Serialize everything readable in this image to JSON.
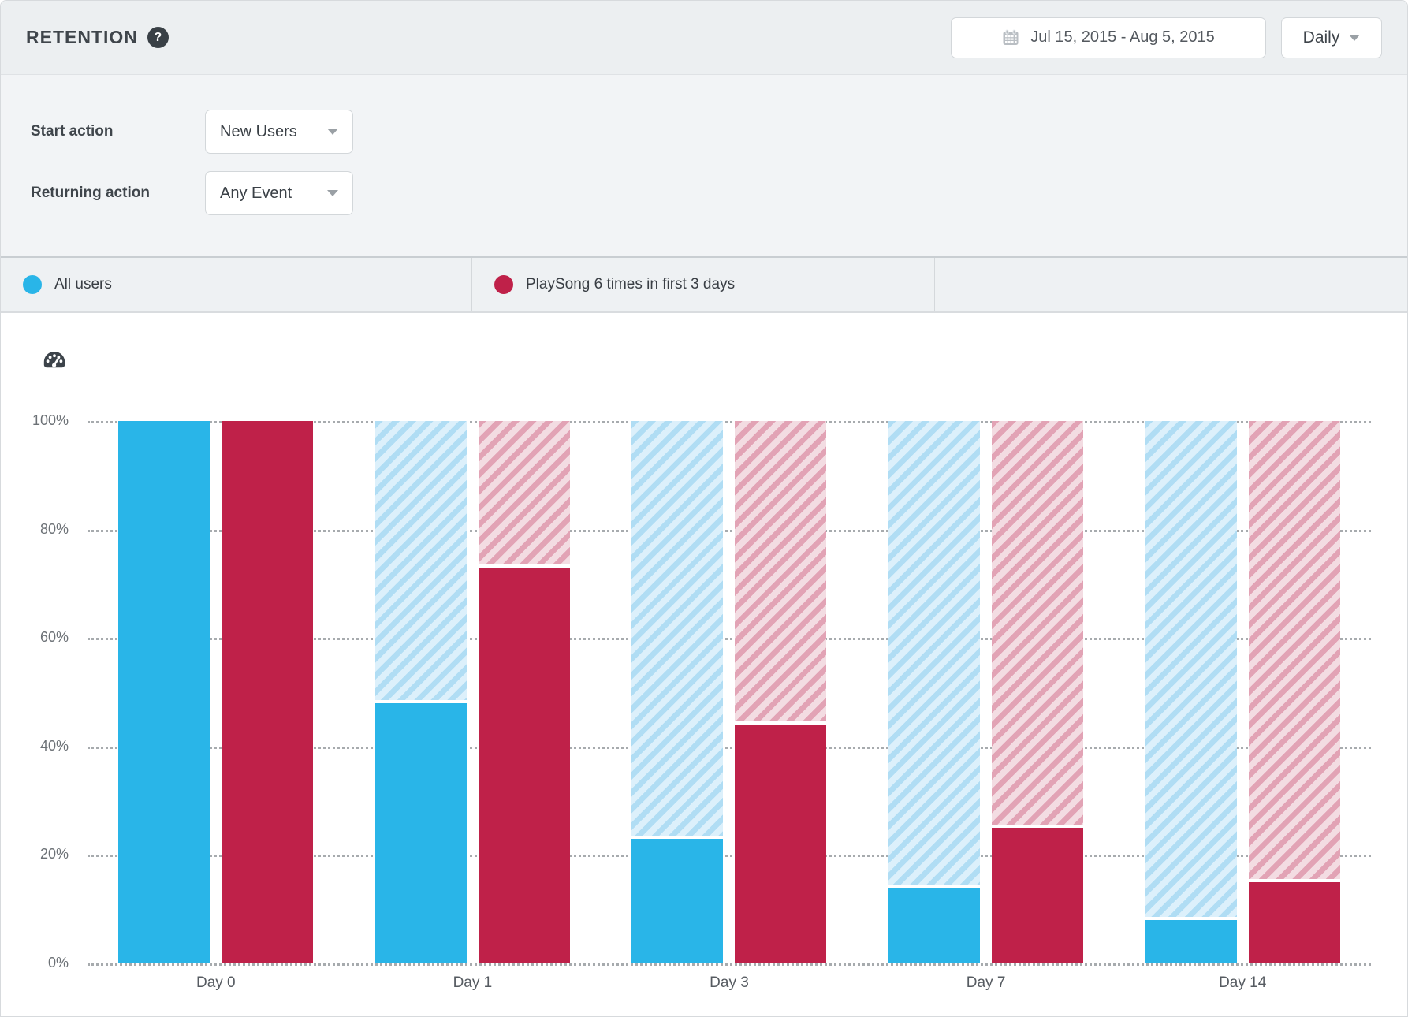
{
  "header": {
    "title": "RETENTION",
    "help_icon": "question-mark",
    "date_range": "Jul 15, 2015  -  Aug 5, 2015",
    "granularity": "Daily"
  },
  "filters": {
    "start_action_label": "Start action",
    "start_action_value": "New Users",
    "returning_action_label": "Returning action",
    "returning_action_value": "Any Event"
  },
  "legend": [
    {
      "label": "All users",
      "color": "#29b5e8"
    },
    {
      "label": "PlaySong 6 times in first 3 days",
      "color": "#bf2149"
    }
  ],
  "chart_data": {
    "type": "bar",
    "title": "",
    "xlabel": "",
    "ylabel": "",
    "categories": [
      "Day 0",
      "Day 1",
      "Day 3",
      "Day 7",
      "Day 14"
    ],
    "series": [
      {
        "name": "All users",
        "values": [
          100,
          48,
          23,
          14,
          8
        ],
        "color": "#29b5e8",
        "hatch_bg": "#dcf0fb",
        "hatch_stripe": "#b0ddf4"
      },
      {
        "name": "PlaySong 6 times in first 3 days",
        "values": [
          100,
          73,
          44,
          25,
          15
        ],
        "color": "#bf2149",
        "hatch_bg": "#f3dce2",
        "hatch_stripe": "#e2a3b5"
      }
    ],
    "y_ticks": [
      "100%",
      "80%",
      "60%",
      "40%",
      "20%",
      "0%"
    ],
    "ylim": [
      0,
      100
    ],
    "grid": "horizontal-dotted",
    "legend_position": "top-tabs",
    "hatched_remainder_to_100": true
  }
}
